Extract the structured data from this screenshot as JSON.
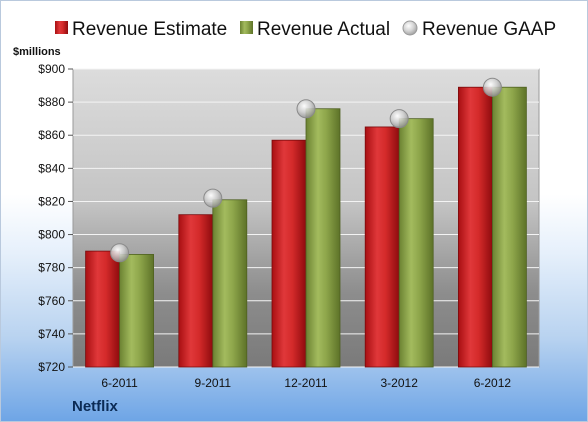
{
  "company": "Netflix",
  "colors": {
    "estimate": "#d42a2a",
    "actual": "#8da54a",
    "gaap": "#bfbfbf"
  },
  "chart_data": {
    "type": "bar",
    "unit_label": "$millions",
    "categories": [
      "6-2011",
      "9-2011",
      "12-2011",
      "3-2012",
      "6-2012"
    ],
    "series": [
      {
        "name": "Revenue Estimate",
        "kind": "bar",
        "values": [
          790,
          812,
          857,
          865,
          889
        ]
      },
      {
        "name": "Revenue Actual",
        "kind": "bar",
        "values": [
          788,
          821,
          876,
          870,
          889
        ]
      },
      {
        "name": "Revenue GAAP",
        "kind": "marker",
        "values": [
          789,
          822,
          876,
          870,
          889
        ]
      }
    ],
    "ylim": [
      720,
      900
    ],
    "yticks": [
      720,
      740,
      760,
      780,
      800,
      820,
      840,
      860,
      880,
      900
    ],
    "ytick_labels": [
      "$720",
      "$740",
      "$760",
      "$780",
      "$800",
      "$820",
      "$840",
      "$860",
      "$880",
      "$900"
    ],
    "grid": true,
    "legend_position": "top"
  }
}
